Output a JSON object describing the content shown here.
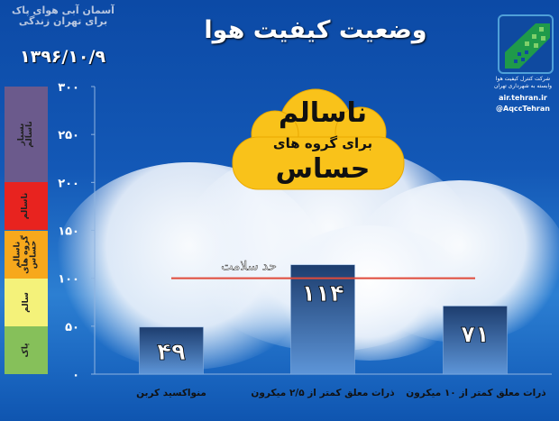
{
  "header": {
    "title": "وضعیت کیفیت هوا",
    "date": "۱۳۹۶/۱۰/۹",
    "brand_logo": "آسمان آبی هوای پاک برای تهران زندگی"
  },
  "org": {
    "name": "شرکت کنترل کیفیت هوا",
    "subtitle": "وابسته به شهرداری تهران",
    "website": "air.tehran.ir",
    "handle": "@AqccTehran"
  },
  "status_badge": {
    "line1": "ناسالم",
    "line2": "برای گروه های",
    "line3": "حساس",
    "color": "#f9c21a"
  },
  "scale": [
    {
      "label": "پاک",
      "range": [
        0,
        50
      ],
      "color": "#86c05a"
    },
    {
      "label": "سالم",
      "range": [
        50,
        100
      ],
      "color": "#f4f27a"
    },
    {
      "label": "ناسالم گروه های حساس",
      "range": [
        100,
        150
      ],
      "color": "#f7a81c"
    },
    {
      "label": "ناسالم",
      "range": [
        150,
        200
      ],
      "color": "#e8231f"
    },
    {
      "label": "بسیار ناسالم",
      "range": [
        200,
        300
      ],
      "color": "#6b5a8c"
    }
  ],
  "chart_data": {
    "type": "bar",
    "categories": [
      "منواکسید کربن",
      "ذرات معلق کمتر از ۲/۵ میکرون",
      "ذرات معلق کمتر از ۱۰ میکرون"
    ],
    "values": [
      49,
      114,
      71
    ],
    "value_labels": [
      "۴۹",
      "۱۱۴",
      "۷۱"
    ],
    "ylim": [
      0,
      300
    ],
    "yticks": [
      0,
      50,
      100,
      150,
      200,
      250,
      300
    ],
    "ytick_labels": [
      "۰",
      "۵۰",
      "۱۰۰",
      "۱۵۰",
      "۲۰۰",
      "۲۵۰",
      "۳۰۰"
    ],
    "reference_line": {
      "value": 100,
      "label": "حد سلامت",
      "color": "#e04a3a"
    },
    "bar_color": "#3d6fb0",
    "grid": false
  }
}
